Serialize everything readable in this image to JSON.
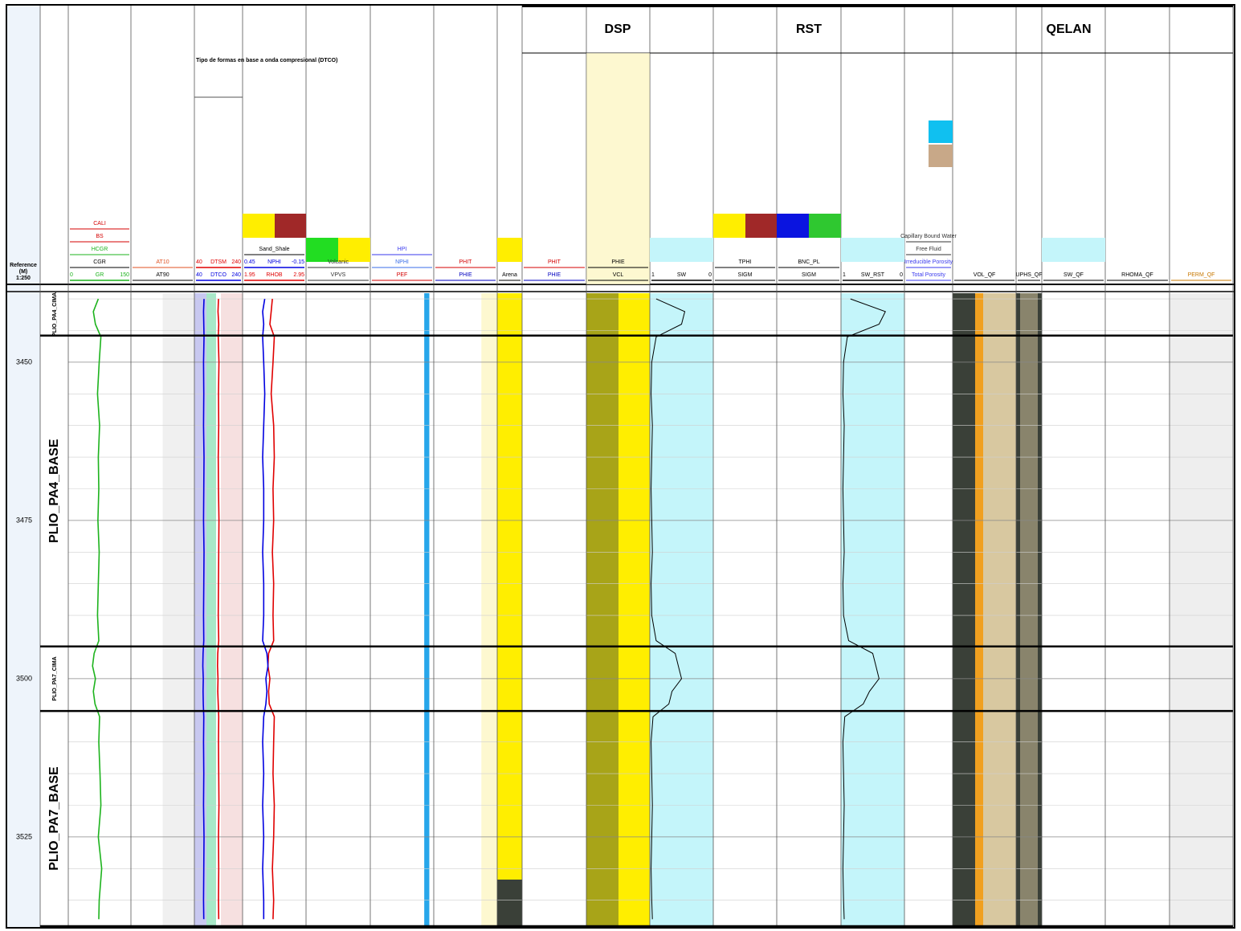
{
  "header": {
    "reference": "Reference",
    "unit": "(M)",
    "scale": "1:250",
    "groups": [
      {
        "title": "DSP"
      },
      {
        "title": "RST"
      },
      {
        "title": "QELAN"
      }
    ],
    "note": "Tipo de formas en base a onda compresional (DTCO)",
    "tracks": [
      {
        "labels": []
      },
      {
        "labels": [
          {
            "text": "CGR",
            "color": "#000000"
          },
          {
            "text": "HCGR",
            "color": "#1db31d"
          },
          {
            "text": "BS",
            "color": "#d40000"
          },
          {
            "text": "CALI",
            "color": "#d40000"
          }
        ]
      },
      {
        "labels": [
          {
            "text": "AT90",
            "color": "#000000"
          },
          {
            "text": "AT10",
            "color": "#e05020"
          }
        ]
      },
      {
        "labels": []
      },
      {
        "labels": [
          {
            "text": "Sand_Shale",
            "color": "#000000"
          }
        ]
      },
      {
        "labels": [
          {
            "text": "VPVS",
            "color": "#333333"
          },
          {
            "text": "Volcanic",
            "color": "#333333"
          }
        ]
      },
      {
        "labels": [
          {
            "text": "PEF",
            "color": "#d40000"
          },
          {
            "text": "NPHI",
            "color": "#3a6ee8"
          },
          {
            "text": "HPI",
            "color": "#3a3aee"
          }
        ]
      },
      {
        "labels": [
          {
            "text": "PHIE",
            "color": "#0000c0"
          },
          {
            "text": "PHIT",
            "color": "#d40000"
          }
        ]
      },
      {
        "labels": [
          {
            "text": "Arena",
            "color": "#000000"
          }
        ]
      },
      {
        "labels": [
          {
            "text": "PHIE",
            "color": "#0000c0"
          },
          {
            "text": "PHIT",
            "color": "#d40000"
          }
        ]
      },
      {
        "labels": [
          {
            "text": "VCL",
            "color": "#000000"
          },
          {
            "text": "PHIE",
            "color": "#000000"
          }
        ]
      },
      {
        "labels": []
      },
      {
        "labels": [
          {
            "text": "SIGM",
            "color": "#000000"
          },
          {
            "text": "TPHI",
            "color": "#000000"
          }
        ]
      },
      {
        "labels": [
          {
            "text": "SIGM",
            "color": "#000000"
          },
          {
            "text": "BNC_PL",
            "color": "#000000"
          }
        ]
      },
      {
        "labels": []
      },
      {
        "labels": [
          {
            "text": "Total Porosity",
            "color": "#3a3aee"
          },
          {
            "text": "Irreducible Porosity",
            "color": "#3a3aee"
          },
          {
            "text": "Free Fluid",
            "color": "#333333"
          },
          {
            "text": "Capillary Bound Water",
            "color": "#333333"
          }
        ]
      },
      {
        "labels": [
          {
            "text": "VOL_QF",
            "color": "#000000"
          }
        ]
      },
      {
        "labels": [
          {
            "text": "UPHS_QF",
            "color": "#000000"
          }
        ]
      },
      {
        "labels": [
          {
            "text": "SW_QF",
            "color": "#000000"
          }
        ]
      },
      {
        "labels": [
          {
            "text": "RHOMA_QF",
            "color": "#000000"
          }
        ]
      },
      {
        "labels": [
          {
            "text": "PERM_QF",
            "color": "#c87800"
          }
        ]
      }
    ]
  },
  "depth": {
    "range": [
      3439.1,
      3539.1
    ],
    "ticks": [
      3450,
      3475,
      3500,
      3525
    ],
    "minor_ticks": [
      3440,
      3445,
      3455,
      3460,
      3465,
      3470,
      3480,
      3485,
      3490,
      3495,
      3505,
      3510,
      3515,
      3520,
      3530,
      3535
    ]
  },
  "zones": [
    {
      "name": "PLIO_PA4_CIMA",
      "top": 3439.1,
      "base": 3445.8
    },
    {
      "name": "PLIO_PA4_BASE",
      "top": 3445.8,
      "base": 3494.9
    },
    {
      "name": "PLIO_PA7_CIMA",
      "top": 3494.9,
      "base": 3505.1
    },
    {
      "name": "PLIO_PA7_BASE",
      "top": 3505.1,
      "base": 3539.1
    }
  ],
  "samples": [
    3440,
    3442,
    3444,
    3446,
    3450,
    3455,
    3460,
    3465,
    3470,
    3475,
    3480,
    3485,
    3490,
    3494,
    3496,
    3498,
    3500,
    3502,
    3504,
    3506,
    3510,
    3515,
    3520,
    3525,
    3530,
    3535,
    3538
  ],
  "curves": [
    {
      "name": "GR",
      "color": "#1db31d",
      "scale": [
        0,
        150
      ],
      "values": [
        72,
        60,
        65,
        78,
        74,
        70,
        75,
        72,
        73,
        71,
        74,
        72,
        70,
        73,
        62,
        58,
        65,
        60,
        64,
        75,
        73,
        76,
        78,
        72,
        80,
        74,
        73
      ]
    },
    {
      "name": "DTCO",
      "color": "#0000e0",
      "scale": [
        40,
        240
      ],
      "values": [
        80,
        78,
        79,
        80,
        78,
        79,
        78,
        80,
        79,
        78,
        80,
        79,
        78,
        79,
        76,
        75,
        77,
        76,
        77,
        79,
        78,
        79,
        78,
        80,
        79,
        78,
        79
      ]
    },
    {
      "name": "DTSM",
      "color": "#e00000",
      "scale": [
        40,
        240
      ],
      "values": [
        140,
        138,
        141,
        139,
        142,
        140,
        141,
        139,
        140,
        142,
        141,
        140,
        139,
        141,
        137,
        136,
        138,
        137,
        139,
        141,
        140,
        141,
        142,
        140,
        141,
        140,
        141
      ]
    },
    {
      "name": "RHOB",
      "color": "#e00000",
      "scale": [
        1.95,
        2.95
      ],
      "values": [
        2.42,
        2.4,
        2.38,
        2.45,
        2.43,
        2.4,
        2.44,
        2.45,
        2.43,
        2.44,
        2.42,
        2.44,
        2.43,
        2.44,
        2.36,
        2.35,
        2.38,
        2.36,
        2.37,
        2.45,
        2.44,
        2.43,
        2.45,
        2.44,
        2.42,
        2.44,
        2.43
      ]
    },
    {
      "name": "NPHI",
      "color": "#0000e0",
      "scale": [
        0.45,
        -0.15
      ],
      "values": [
        0.24,
        0.26,
        0.25,
        0.26,
        0.25,
        0.24,
        0.25,
        0.26,
        0.25,
        0.25,
        0.26,
        0.25,
        0.25,
        0.26,
        0.22,
        0.21,
        0.23,
        0.22,
        0.23,
        0.25,
        0.26,
        0.25,
        0.26,
        0.25,
        0.26,
        0.25,
        0.25
      ]
    },
    {
      "name": "SW",
      "color": "#000000",
      "scale": [
        1,
        0
      ],
      "values": [
        0.9,
        0.45,
        0.5,
        0.9,
        0.97,
        0.98,
        0.96,
        0.97,
        0.98,
        0.97,
        0.96,
        0.98,
        0.97,
        0.9,
        0.6,
        0.55,
        0.5,
        0.65,
        0.7,
        0.95,
        0.98,
        0.97,
        0.96,
        0.97,
        0.98,
        0.97,
        0.96
      ]
    },
    {
      "name": "SW_RST",
      "color": "#000000",
      "scale": [
        1,
        0
      ],
      "values": [
        0.85,
        0.3,
        0.4,
        0.9,
        0.96,
        0.97,
        0.95,
        0.96,
        0.97,
        0.96,
        0.95,
        0.97,
        0.96,
        0.88,
        0.5,
        0.45,
        0.4,
        0.55,
        0.65,
        0.94,
        0.97,
        0.96,
        0.95,
        0.96,
        0.97,
        0.96,
        0.95
      ]
    }
  ]
}
